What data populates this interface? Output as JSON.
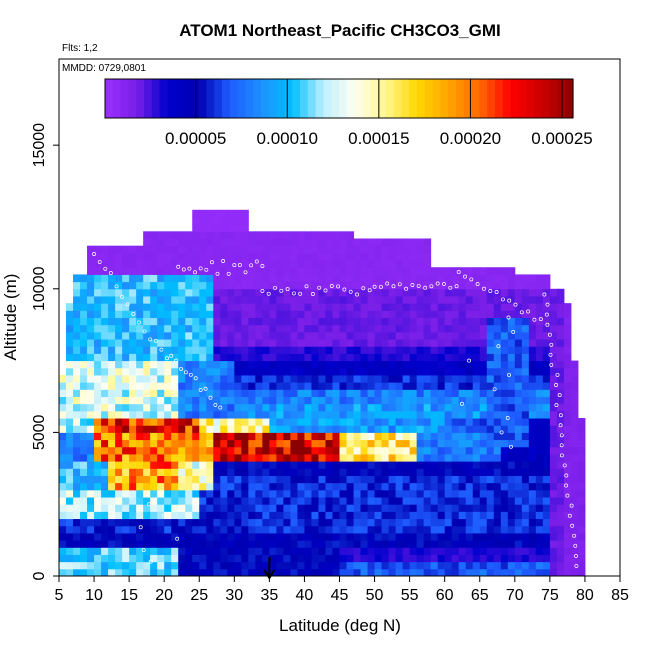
{
  "chart_data": {
    "type": "heatmap",
    "title": "ATOM1 Northeast_Pacific CH3CO3_GMI",
    "flights_label": "Flts: 1,2",
    "date_label": "MMDD: 0729,0801",
    "xlabel": "Latitude (deg N)",
    "ylabel": "Altitude (m)",
    "xlim": [
      5,
      85
    ],
    "ylim": [
      0,
      18000
    ],
    "x_ticks": [
      "5",
      "10",
      "15",
      "20",
      "25",
      "30",
      "35",
      "40",
      "45",
      "50",
      "55",
      "60",
      "65",
      "70",
      "75",
      "80",
      "85"
    ],
    "y_ticks": [
      "0",
      "5000",
      "10000",
      "15000"
    ],
    "colorbar": {
      "range": [
        5e-07,
        0.000256
      ],
      "tick_labels": [
        "0.00005",
        "0.00010",
        "0.00015",
        "0.00020",
        "0.00025"
      ],
      "colors": [
        "#9b30ff",
        "#7a1fe8",
        "#0000cd",
        "#0000b0",
        "#1e5bff",
        "#1e90ff",
        "#00bfff",
        "#bfefff",
        "#fffff0",
        "#fff68f",
        "#ffd700",
        "#ffa500",
        "#ff6a00",
        "#ff0000",
        "#cd0000",
        "#8b0000"
      ]
    },
    "marker": {
      "latitude": 35,
      "label": "arrow"
    },
    "altitude_layers": [
      {
        "alt": [
          0,
          500
        ],
        "value": 7e-05
      },
      {
        "alt": [
          500,
          1000
        ],
        "value": 3e-05
      },
      {
        "alt": [
          1000,
          1500
        ],
        "value": 5e-05
      },
      {
        "alt": [
          1500,
          2000
        ],
        "value": 6e-05
      },
      {
        "alt": [
          2000,
          2500
        ],
        "value": 6e-05
      },
      {
        "alt": [
          2500,
          3000
        ],
        "value": 6e-05
      },
      {
        "alt": [
          3000,
          3500
        ],
        "value": 6e-05
      },
      {
        "alt": [
          3500,
          4000
        ],
        "value": 5e-05
      },
      {
        "alt": [
          4000,
          4500
        ],
        "value": 0.00018
      },
      {
        "alt": [
          4500,
          5000
        ],
        "value": 0.00023
      },
      {
        "alt": [
          5000,
          5500
        ],
        "value": 0.00012
      },
      {
        "alt": [
          5500,
          6000
        ],
        "value": 9e-05
      },
      {
        "alt": [
          6000,
          6500
        ],
        "value": 8e-05
      },
      {
        "alt": [
          6500,
          7000
        ],
        "value": 6e-05
      },
      {
        "alt": [
          7000,
          7500
        ],
        "value": 4e-05
      },
      {
        "alt": [
          7500,
          8000
        ],
        "value": 3e-05
      },
      {
        "alt": [
          8000,
          9000
        ],
        "value": 2e-05
      },
      {
        "alt": [
          9000,
          10000
        ],
        "value": 2e-05
      },
      {
        "alt": [
          10000,
          11000
        ],
        "value": 1e-05
      },
      {
        "alt": [
          11000,
          12000
        ],
        "value": 1e-05
      },
      {
        "alt": [
          12000,
          12800
        ],
        "value": 5e-06
      }
    ]
  }
}
